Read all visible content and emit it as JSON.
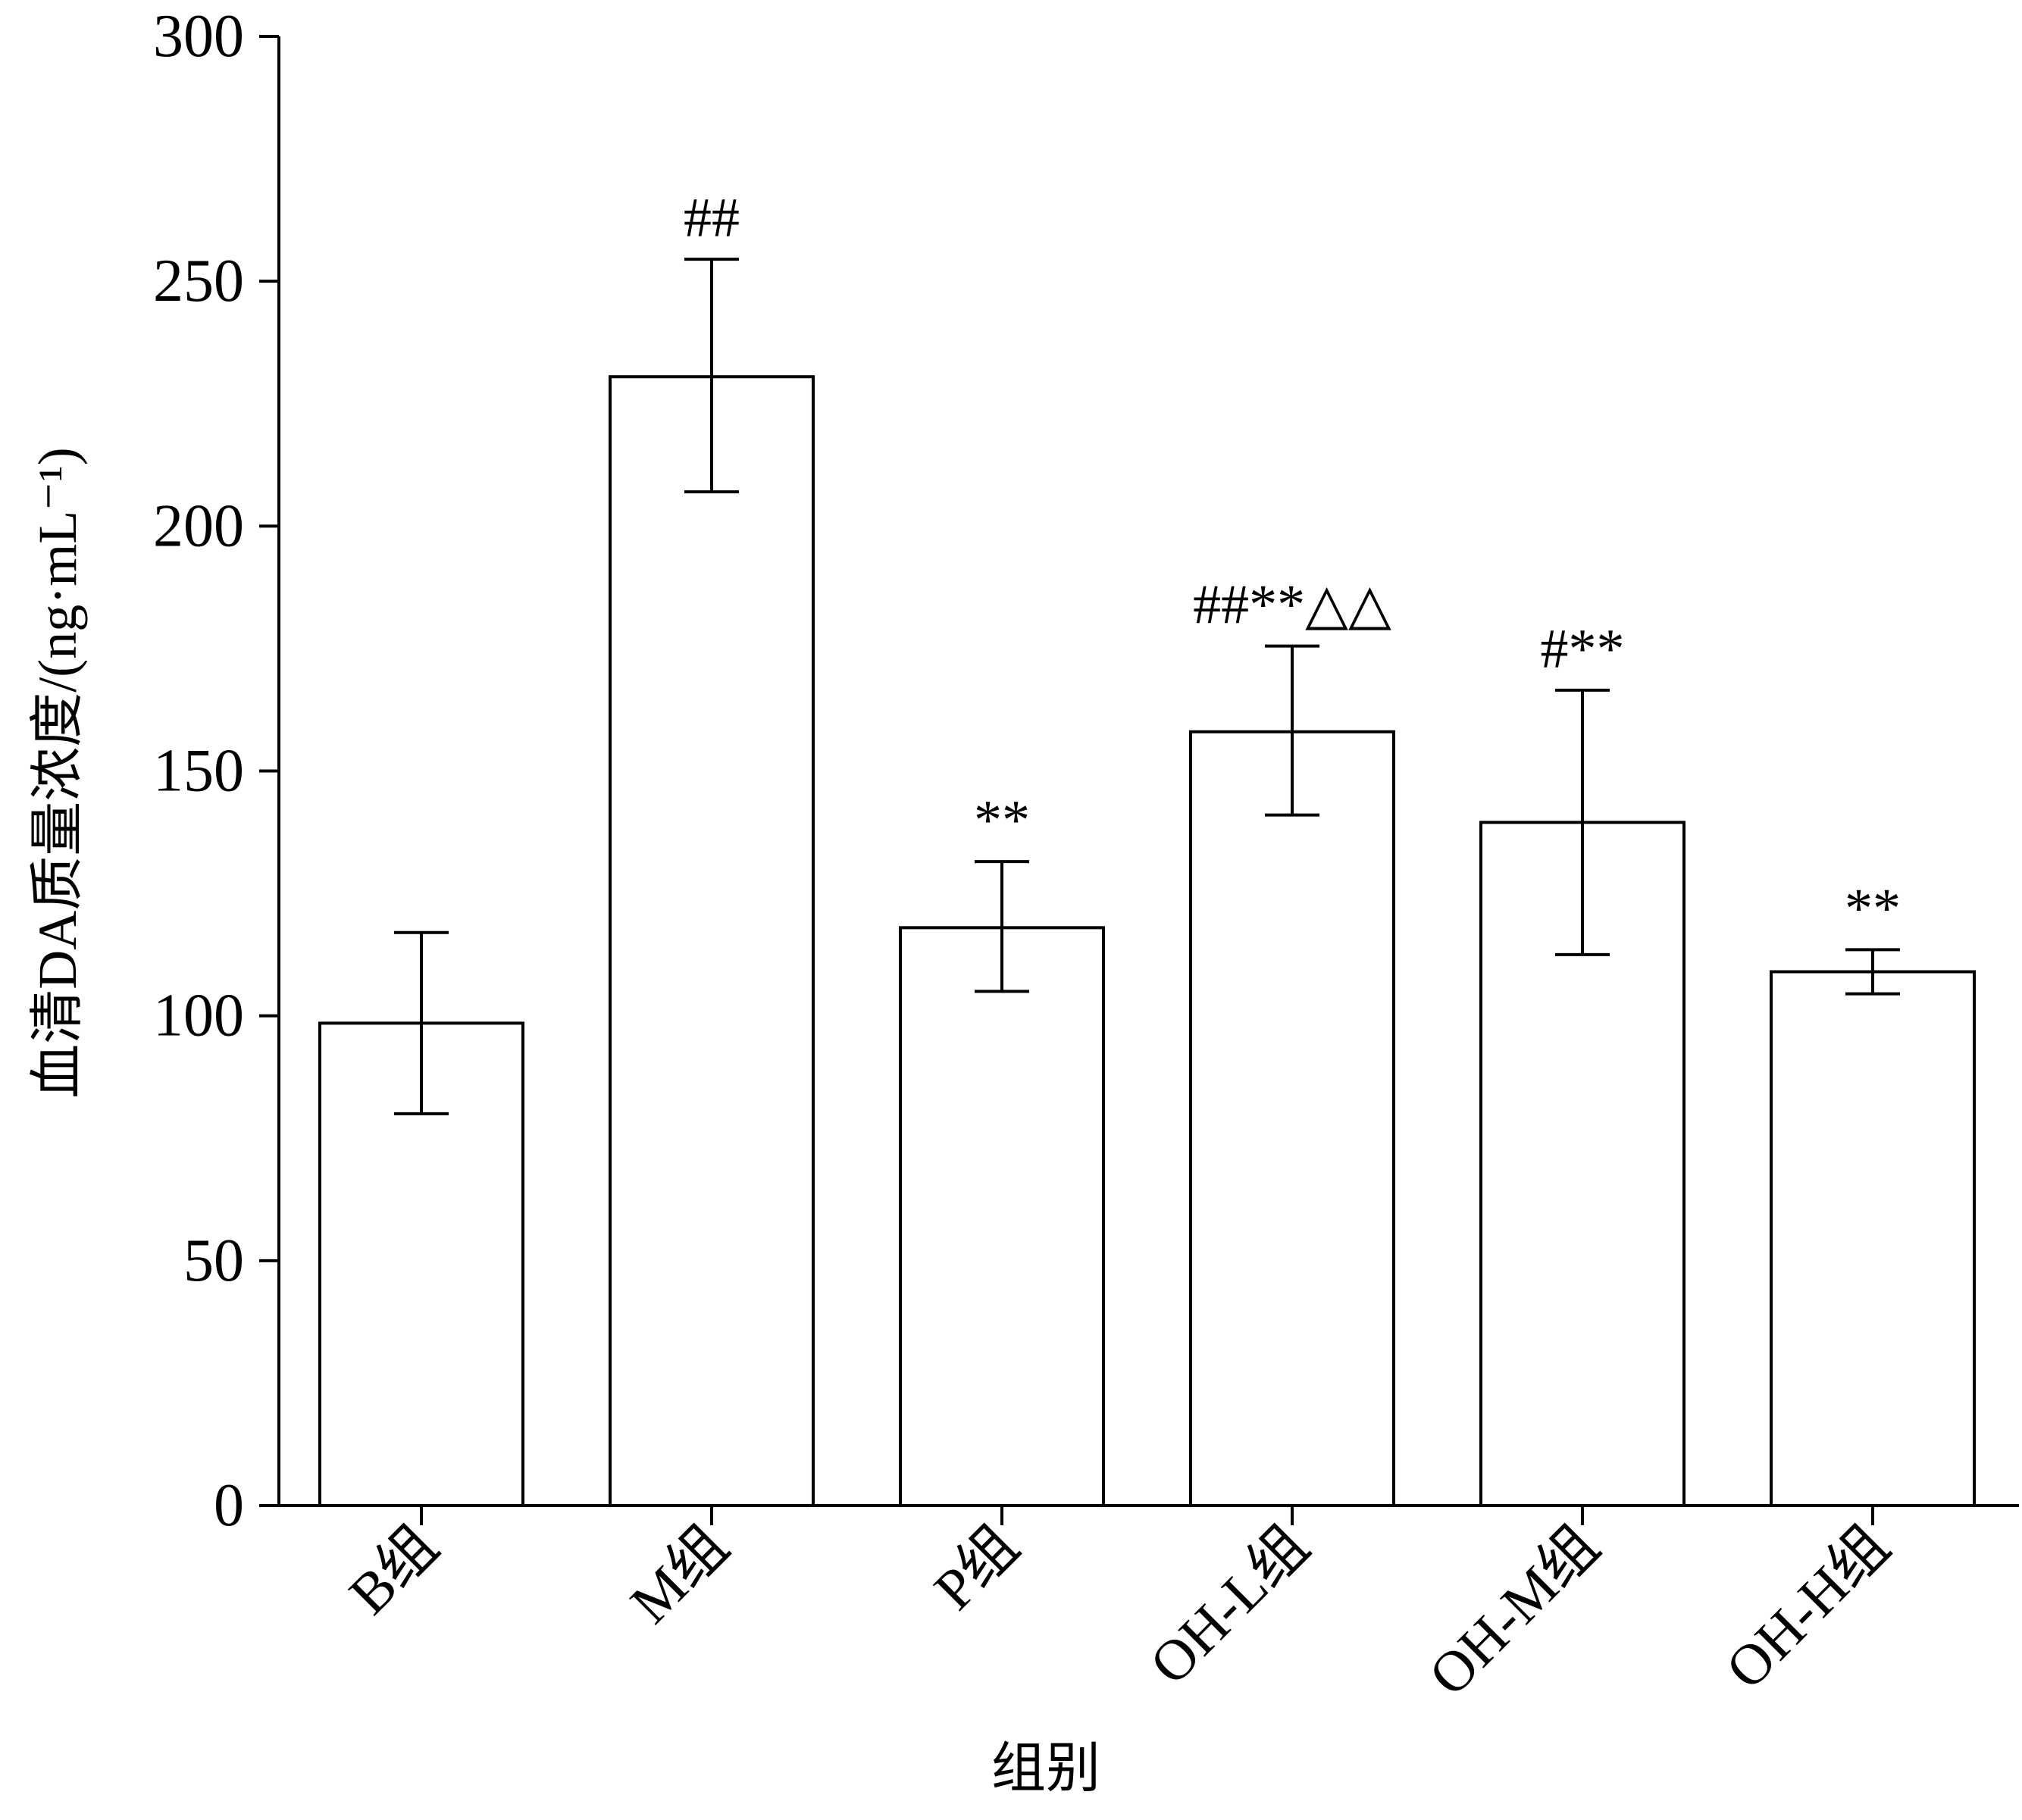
{
  "chart_data": {
    "type": "bar",
    "title": "",
    "xlabel": "组别",
    "ylabel": "血清DA质量浓度/(ng·mL⁻¹)",
    "ylim": [
      0,
      300
    ],
    "yticks": [
      "0",
      "50",
      "100",
      "150",
      "200",
      "250",
      "300"
    ],
    "categories": [
      "B组",
      "M组",
      "P组",
      "OH-L组",
      "OH-M组",
      "OH-H组"
    ],
    "values": [
      98.5,
      230.5,
      118,
      158,
      139.5,
      109
    ],
    "error_low": [
      80,
      207,
      105,
      141,
      112.5,
      104.5
    ],
    "error_high": [
      117,
      254.5,
      131.5,
      175.5,
      166.5,
      113.5
    ],
    "annotations": [
      "",
      "##",
      "**",
      "##**△△",
      "#**",
      "**"
    ],
    "bar_fill": "#ffffff",
    "bar_stroke": "#000000",
    "grid": false,
    "legend": "none"
  }
}
